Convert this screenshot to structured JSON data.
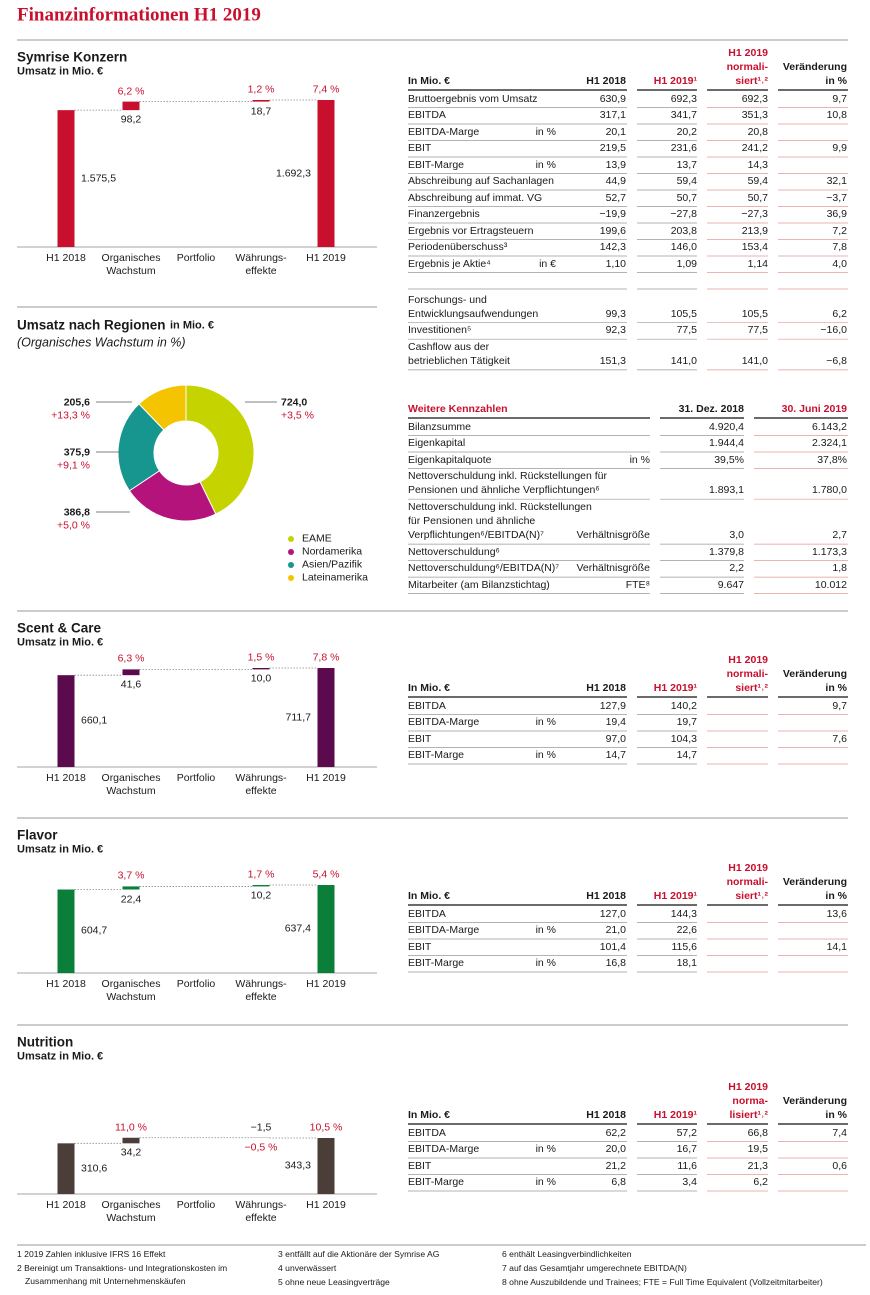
{
  "title": "Finanzinformationen H1 2019",
  "konzern": {
    "heading": "Symrise Konzern",
    "subheading": "Umsatz in Mio. €",
    "chart_data": {
      "type": "waterfall",
      "color": "#c8102e",
      "categories": [
        "H1 2018",
        "Organisches\nWachstum",
        "Portfolio",
        "Währungs-\neffekte",
        "H1 2019"
      ],
      "values": [
        1575.5,
        98.2,
        null,
        18.7,
        1692.3
      ],
      "value_labels": [
        "1.575,5",
        "98,2",
        null,
        "18,7",
        "1.692,3"
      ],
      "growth_labels": [
        null,
        "6,2 %",
        null,
        "1,2 %",
        "7,4 %"
      ]
    },
    "table": {
      "header": [
        "In Mio. €",
        "H1 2018",
        "H1 2019¹",
        "H1 2019\nnormali-\nsiert¹˒²",
        "Veränderung\nin %"
      ],
      "rows": [
        [
          "Bruttoergebnis vom Umsatz",
          null,
          "630,9",
          "692,3",
          "692,3",
          "9,7"
        ],
        [
          "EBITDA",
          null,
          "317,1",
          "341,7",
          "351,3",
          "10,8"
        ],
        [
          "EBITDA-Marge",
          "in %",
          "20,1",
          "20,2",
          "20,8",
          null
        ],
        [
          "EBIT",
          null,
          "219,5",
          "231,6",
          "241,2",
          "9,9"
        ],
        [
          "EBIT-Marge",
          "in %",
          "13,9",
          "13,7",
          "14,3",
          null
        ],
        [
          "Abschreibung auf Sachanlagen",
          null,
          "44,9",
          "59,4",
          "59,4",
          "32,1"
        ],
        [
          "Abschreibung auf immat. VG",
          null,
          "52,7",
          "50,7",
          "50,7",
          "−3,7"
        ],
        [
          "Finanzergebnis",
          null,
          "−19,9",
          "−27,8",
          "−27,3",
          "36,9"
        ],
        [
          "Ergebnis vor Ertragsteuern",
          null,
          "199,6",
          "203,8",
          "213,9",
          "7,2"
        ],
        [
          "Periodenüberschuss³",
          null,
          "142,3",
          "146,0",
          "153,4",
          "7,8"
        ],
        [
          "Ergebnis je Aktie⁴",
          "in €",
          "1,10",
          "1,09",
          "1,14",
          "4,0"
        ],
        [
          "Forschungs- und\nEntwicklungsaufwendungen",
          null,
          "99,3",
          "105,5",
          "105,5",
          "6,2"
        ],
        [
          "Investitionen⁵",
          null,
          "92,3",
          "77,5",
          "77,5",
          "−16,0"
        ],
        [
          "Cashflow aus der\nbetrieblichen Tätigkeit",
          null,
          "151,3",
          "141,0",
          "141,0",
          "−6,8"
        ]
      ]
    }
  },
  "regionen": {
    "heading": "Umsatz nach Regionen",
    "heading_unit": "in Mio. €",
    "subheading": "(Organisches Wachstum in %)",
    "chart_data": {
      "type": "pie",
      "donut": true,
      "categories": [
        "EAME",
        "Nordamerika",
        "Asien/Pazifik",
        "Lateinamerika"
      ],
      "values": [
        724.0,
        386.8,
        375.9,
        205.6
      ],
      "value_labels": [
        "724,0",
        "386,8",
        "375,9",
        "205,6"
      ],
      "growth_labels": [
        "+3,5 %",
        "+5,0 %",
        "+9,1 %",
        "+13,3 %"
      ],
      "colors": [
        "#c5d300",
        "#b5137c",
        "#17968f",
        "#f5c400"
      ]
    },
    "table": {
      "header": [
        "Weitere Kennzahlen",
        "31. Dez. 2018",
        "30. Juni 2019"
      ],
      "rows": [
        [
          "Bilanzsumme",
          null,
          "4.920,4",
          "6.143,2"
        ],
        [
          "Eigenkapital",
          null,
          "1.944,4",
          "2.324,1"
        ],
        [
          "Eigenkapitalquote",
          "in %",
          "39,5%",
          "37,8%"
        ],
        [
          "Nettoverschuldung inkl. Rückstellungen für\nPensionen und ähnliche Verpflichtungen⁶",
          null,
          "1.893,1",
          "1.780,0"
        ],
        [
          "Nettoverschuldung inkl. Rückstellungen\nfür Pensionen und ähnliche\nVerpflichtungen⁶/EBITDA(N)⁷",
          "Verhältnisgröße",
          "3,0",
          "2,7"
        ],
        [
          "Nettoverschuldung⁶",
          null,
          "1.379,8",
          "1.173,3"
        ],
        [
          "Nettoverschuldung⁶/EBITDA(N)⁷",
          "Verhältnisgröße",
          "2,2",
          "1,8"
        ],
        [
          "Mitarbeiter (am Bilanzstichtag)",
          "FTE⁸",
          "9.647",
          "10.012"
        ]
      ]
    }
  },
  "scent_care": {
    "heading": "Scent & Care",
    "subheading": "Umsatz in Mio. €",
    "chart_data": {
      "type": "waterfall",
      "color": "#5b0a4e",
      "categories": [
        "H1 2018",
        "Organisches\nWachstum",
        "Portfolio",
        "Währungs-\neffekte",
        "H1 2019"
      ],
      "values": [
        660.1,
        41.6,
        null,
        10.0,
        711.7
      ],
      "value_labels": [
        "660,1",
        "41,6",
        null,
        "10,0",
        "711,7"
      ],
      "growth_labels": [
        null,
        "6,3 %",
        null,
        "1,5 %",
        "7,8 %"
      ]
    },
    "table": {
      "header": [
        "In Mio. €",
        "H1 2018",
        "H1 2019¹",
        "H1 2019\nnormali-\nsiert¹˒²",
        "Veränderung\nin %"
      ],
      "rows": [
        [
          "EBITDA",
          null,
          "127,9",
          "140,2",
          null,
          "9,7"
        ],
        [
          "EBITDA-Marge",
          "in %",
          "19,4",
          "19,7",
          null,
          null
        ],
        [
          "EBIT",
          null,
          "97,0",
          "104,3",
          null,
          "7,6"
        ],
        [
          "EBIT-Marge",
          "in %",
          "14,7",
          "14,7",
          null,
          null
        ]
      ]
    }
  },
  "flavor": {
    "heading": "Flavor",
    "subheading": "Umsatz in Mio. €",
    "chart_data": {
      "type": "waterfall",
      "color": "#0b7f3a",
      "categories": [
        "H1 2018",
        "Organisches\nWachstum",
        "Portfolio",
        "Währungs-\neffekte",
        "H1 2019"
      ],
      "values": [
        604.7,
        22.4,
        null,
        10.2,
        637.4
      ],
      "value_labels": [
        "604,7",
        "22,4",
        null,
        "10,2",
        "637,4"
      ],
      "growth_labels": [
        null,
        "3,7 %",
        null,
        "1,7 %",
        "5,4 %"
      ]
    },
    "table": {
      "header": [
        "In Mio. €",
        "H1 2018",
        "H1 2019¹",
        "H1 2019\nnormali-\nsiert¹˒²",
        "Veränderung\nin %"
      ],
      "rows": [
        [
          "EBITDA",
          null,
          "127,0",
          "144,3",
          null,
          "13,6"
        ],
        [
          "EBITDA-Marge",
          "in %",
          "21,0",
          "22,6",
          null,
          null
        ],
        [
          "EBIT",
          null,
          "101,4",
          "115,6",
          null,
          "14,1"
        ],
        [
          "EBIT-Marge",
          "in %",
          "16,8",
          "18,1",
          null,
          null
        ]
      ]
    }
  },
  "nutrition": {
    "heading": "Nutrition",
    "subheading": "Umsatz in Mio. €",
    "chart_data": {
      "type": "waterfall",
      "color": "#4b3d38",
      "categories": [
        "H1 2018",
        "Organisches\nWachstum",
        "Portfolio",
        "Währungs-\neffekte",
        "H1 2019"
      ],
      "values": [
        310.6,
        34.2,
        null,
        -1.5,
        343.3
      ],
      "value_labels": [
        "310,6",
        "34,2",
        null,
        "−1,5",
        "343,3"
      ],
      "growth_labels": [
        null,
        "11,0 %",
        null,
        "−0,5 %",
        "10,5 %"
      ]
    },
    "table": {
      "header": [
        "In Mio. €",
        "H1 2018",
        "H1 2019¹",
        "H1 2019\nnorma-\nlisiert¹˒²",
        "Veränderung\nin %"
      ],
      "rows": [
        [
          "EBITDA",
          null,
          "62,2",
          "57,2",
          "66,8",
          "7,4"
        ],
        [
          "EBITDA-Marge",
          "in %",
          "20,0",
          "16,7",
          "19,5",
          null
        ],
        [
          "EBIT",
          null,
          "21,2",
          "11,6",
          "21,3",
          "0,6"
        ],
        [
          "EBIT-Marge",
          "in %",
          "6,8",
          "3,4",
          "6,2",
          null
        ]
      ]
    }
  },
  "footnotes": [
    "1 2019 Zahlen inklusive IFRS 16 Effekt",
    "2 Bereinigt um Transaktions- und Integrationskosten im Zusammenhang mit Unternehmenskäufen",
    "3 entfällt auf die Aktionäre der Symrise AG",
    "4 unverwässert",
    "5 ohne neue Leasingverträge",
    "6 enthält Leasingverbindlichkeiten",
    "7 auf das Gesamtjahr umgerechnete EBITDA(N)",
    "8 ohne Auszubildende und Trainees; FTE = Full Time Equivalent (Vollzeitmitarbeiter)"
  ]
}
